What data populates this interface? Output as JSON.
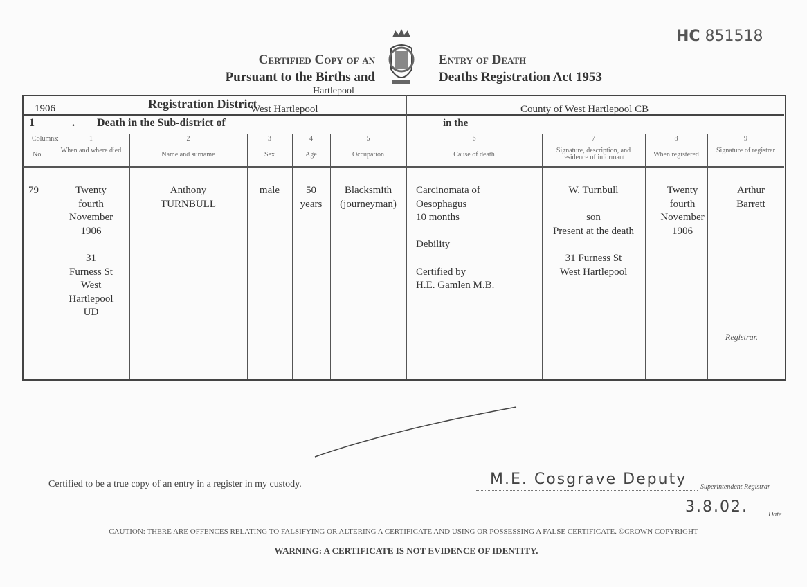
{
  "serial": {
    "prefix": "HC",
    "number": "851518"
  },
  "title": {
    "left_line1": "Certified Copy of an",
    "left_line2": "Pursuant to the Births and",
    "right_line1": "Entry of Death",
    "right_line2": "Deaths Registration Act 1953"
  },
  "crest_icon": "royal-coat-of-arms",
  "district": {
    "above": "Hartlepool",
    "label": "Registration District",
    "value": "West Hartlepool",
    "year": "1906",
    "number": "1",
    "dot": ".",
    "sub_label": "Death in the Sub-district of",
    "in_the": "in the",
    "county": "County of West Hartlepool CB"
  },
  "columns_label": "Columns:",
  "columns": [
    {
      "num": "1",
      "head": "When and where died"
    },
    {
      "num": "2",
      "head": "Name and surname"
    },
    {
      "num": "3",
      "head": "Sex"
    },
    {
      "num": "4",
      "head": "Age"
    },
    {
      "num": "5",
      "head": "Occupation"
    },
    {
      "num": "6",
      "head": "Cause of death"
    },
    {
      "num": "7",
      "head": "Signature, description, and residence of informant"
    },
    {
      "num": "8",
      "head": "When registered"
    },
    {
      "num": "9",
      "head": "Signature of registrar"
    }
  ],
  "no_head": "No.",
  "entry": {
    "no": "79",
    "when_where": [
      "Twenty",
      "fourth",
      "November",
      "1906",
      "",
      "31",
      "Furness St",
      "West",
      "Hartlepool",
      "UD"
    ],
    "name": [
      "Anthony",
      "TURNBULL"
    ],
    "sex": "male",
    "age": [
      "50",
      "years"
    ],
    "occupation": [
      "Blacksmith",
      "(journeyman)"
    ],
    "cause": [
      "Carcinomata of",
      "Oesophagus",
      "10 months",
      "",
      "Debility",
      "",
      "Certified by",
      "H.E. Gamlen M.B."
    ],
    "informant": [
      "W. Turnbull",
      "",
      "son",
      "Present at the death",
      "",
      "31 Furness St",
      "West Hartlepool"
    ],
    "registered": [
      "Twenty",
      "fourth",
      "November",
      "1906"
    ],
    "registrar": [
      "Arthur",
      "Barrett"
    ],
    "registrar_label": "Registrar."
  },
  "footer": {
    "certified": "Certified to be a true copy of an entry in a register in my custody.",
    "signature": "M.E. Cosgrave  Deputy",
    "sig_title": "Superintendent Registrar",
    "date": "3.8.02.",
    "date_label": "Date",
    "caution": "CAUTION: THERE ARE OFFENCES RELATING TO FALSIFYING OR ALTERING A CERTIFICATE AND USING OR POSSESSING A FALSE CERTIFICATE. ©CROWN COPYRIGHT",
    "warning": "WARNING: A CERTIFICATE IS NOT EVIDENCE OF IDENTITY."
  }
}
